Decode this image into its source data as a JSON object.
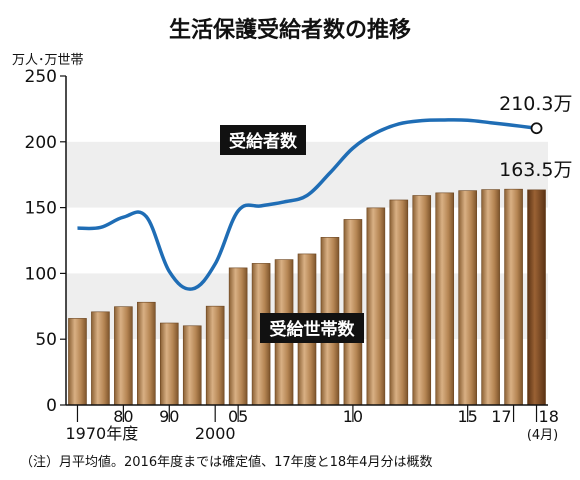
{
  "chart_data": {
    "type": "bar+line",
    "title": "生活保護受給者数の推移",
    "unit_label": "万人･万世帯",
    "ylim": [
      0,
      250
    ],
    "y_ticks": [
      0,
      50,
      100,
      150,
      200,
      250
    ],
    "shaded_bands": [
      [
        50,
        100
      ],
      [
        150,
        200
      ]
    ],
    "x_labels": [
      {
        "label": "1970年度",
        "x": 1970
      },
      {
        "label": "80",
        "x": 1980
      },
      {
        "label": "90",
        "x": 1990
      },
      {
        "label": "2000",
        "x": 2000
      },
      {
        "label": "05",
        "x": 2005
      },
      {
        "label": "10",
        "x": 2010
      },
      {
        "label": "15",
        "x": 2015
      },
      {
        "label": "17",
        "x": 2017
      },
      {
        "label": "18",
        "sublabel": "(4月)",
        "x": 2018
      }
    ],
    "series": [
      {
        "name": "受給世帯数",
        "type": "bar",
        "color": "#b88a58",
        "color_last": "#7a4a22",
        "x": [
          1970,
          1975,
          1980,
          1985,
          1990,
          1995,
          2000,
          2005,
          2006,
          2007,
          2008,
          2009,
          2010,
          2011,
          2012,
          2013,
          2014,
          2015,
          2016,
          2017,
          2018
        ],
        "values": [
          65.8,
          70.8,
          74.7,
          78.1,
          62.3,
          60.2,
          75.1,
          104.2,
          107.6,
          110.5,
          114.8,
          127.4,
          141.0,
          149.8,
          155.8,
          159.2,
          161.2,
          162.9,
          163.7,
          164.0,
          163.5
        ]
      },
      {
        "name": "受給者数",
        "type": "line",
        "color": "#1f6db5",
        "x": [
          1970,
          1975,
          1980,
          1985,
          1990,
          1995,
          2000,
          2005,
          2006,
          2007,
          2008,
          2009,
          2010,
          2011,
          2012,
          2013,
          2014,
          2015,
          2016,
          2017,
          2018
        ],
        "values": [
          134.4,
          134.9,
          142.7,
          143.1,
          101.5,
          88.2,
          107.2,
          147.5,
          151.3,
          154.3,
          159.2,
          176.4,
          195.2,
          206.7,
          213.6,
          216.1,
          216.6,
          216.4,
          214.5,
          212.5,
          210.3
        ]
      }
    ],
    "annotations": [
      {
        "text": "210.3万",
        "series": "受給者数",
        "x": 2018,
        "y": 210.3
      },
      {
        "text": "163.5万",
        "series": "受給世帯数",
        "x": 2018,
        "y": 163.5
      }
    ],
    "note": "（注）月平均値。2016年度までは確定値、17年度と18年4月分は概数",
    "grid": false,
    "legend": "none"
  }
}
